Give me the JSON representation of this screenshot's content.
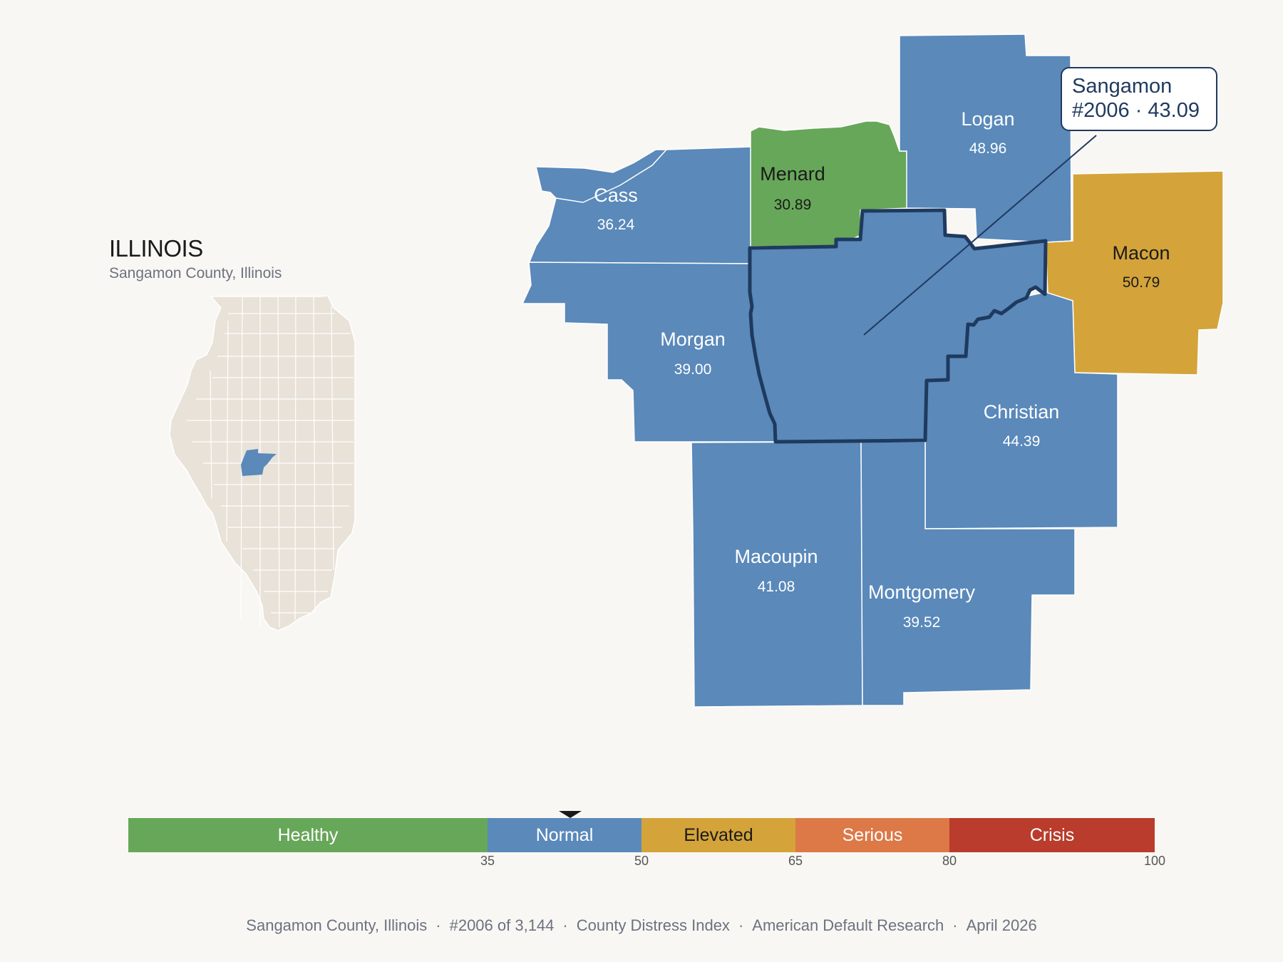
{
  "inset": {
    "title": "ILLINOIS",
    "subtitle": "Sangamon County, Illinois"
  },
  "focus": {
    "name": "Sangamon",
    "rank": "#2006",
    "score": "43.09",
    "callout_line1": "Sangamon",
    "callout_line2": "#2006 · 43.09"
  },
  "counties": [
    {
      "id": "cass",
      "name": "Cass",
      "score": "36.24",
      "category": "Normal"
    },
    {
      "id": "menard",
      "name": "Menard",
      "score": "30.89",
      "category": "Healthy"
    },
    {
      "id": "logan",
      "name": "Logan",
      "score": "48.96",
      "category": "Normal"
    },
    {
      "id": "macon",
      "name": "Macon",
      "score": "50.79",
      "category": "Elevated"
    },
    {
      "id": "morgan",
      "name": "Morgan",
      "score": "39.00",
      "category": "Normal"
    },
    {
      "id": "christian",
      "name": "Christian",
      "score": "44.39",
      "category": "Normal"
    },
    {
      "id": "macoupin",
      "name": "Macoupin",
      "score": "41.08",
      "category": "Normal"
    },
    {
      "id": "montgomery",
      "name": "Montgomery",
      "score": "39.52",
      "category": "Normal"
    }
  ],
  "scale": {
    "segments": [
      {
        "label": "Healthy",
        "from": 0,
        "to": 35,
        "color": "#67a759",
        "text_color": "#ffffff"
      },
      {
        "label": "Normal",
        "from": 35,
        "to": 50,
        "color": "#5a89ba",
        "text_color": "#ffffff"
      },
      {
        "label": "Elevated",
        "from": 50,
        "to": 65,
        "color": "#d4a43a",
        "text_color": "#1a1a1a"
      },
      {
        "label": "Serious",
        "from": 65,
        "to": 80,
        "color": "#dd7847",
        "text_color": "#ffffff"
      },
      {
        "label": "Crisis",
        "from": 80,
        "to": 100,
        "color": "#b93c2c",
        "text_color": "#ffffff"
      }
    ],
    "ticks": [
      "35",
      "50",
      "65",
      "80",
      "100"
    ],
    "marker_value": 43.09
  },
  "footer": {
    "parts": [
      "Sangamon County, Illinois",
      "#2006 of 3,144",
      "County Distress Index",
      "American Default Research",
      "April 2026"
    ],
    "separator": "·"
  },
  "colors": {
    "healthy": "#67a759",
    "normal": "#5a89ba",
    "elevated": "#d4a43a",
    "focus_outline": "#1f3a5f",
    "inset_fill": "#e8e2d8",
    "background": "#f9f7f3"
  }
}
